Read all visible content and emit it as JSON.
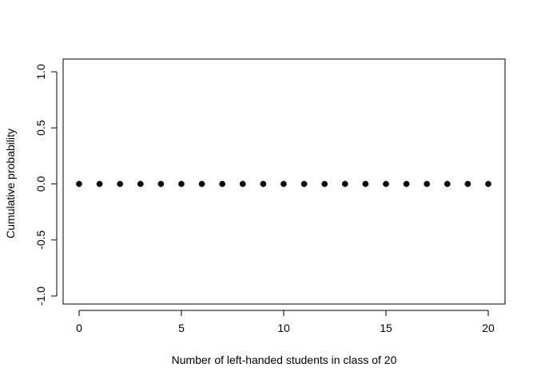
{
  "chart_data": {
    "type": "scatter",
    "title": "",
    "xlabel": "Number of left-handed students in class of 20",
    "ylabel": "Cumulative probability",
    "xlim": [
      0,
      20
    ],
    "ylim": [
      -1.0,
      1.0
    ],
    "x_ticks": [
      0,
      5,
      10,
      15,
      20
    ],
    "x_tick_labels": [
      "0",
      "5",
      "10",
      "15",
      "20"
    ],
    "y_ticks": [
      -1.0,
      -0.5,
      0.0,
      0.5,
      1.0
    ],
    "y_tick_labels": [
      "-1.0",
      "-0.5",
      "0.0",
      "0.5",
      "1.0"
    ],
    "grid": false,
    "legend": "none",
    "point_color": "#000000",
    "series": [
      {
        "x": [
          0,
          1,
          2,
          3,
          4,
          5,
          6,
          7,
          8,
          9,
          10,
          11,
          12,
          13,
          14,
          15,
          16,
          17,
          18,
          19,
          20
        ],
        "y": [
          0,
          0,
          0,
          0,
          0,
          0,
          0,
          0,
          0,
          0,
          0,
          0,
          0,
          0,
          0,
          0,
          0,
          0,
          0,
          0,
          0
        ]
      }
    ]
  }
}
